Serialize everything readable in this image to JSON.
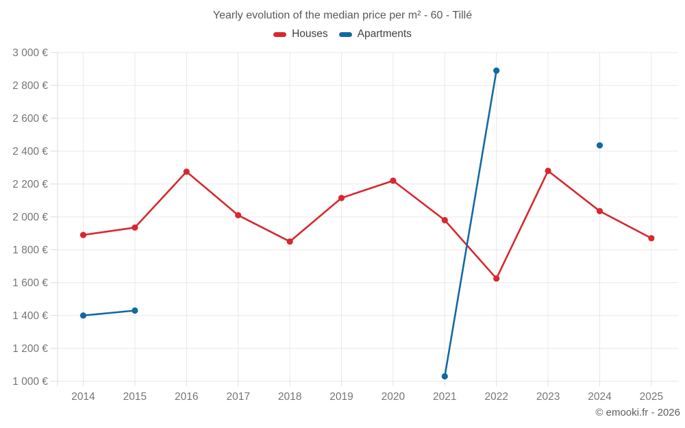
{
  "chart_data": {
    "type": "line",
    "title": "Yearly evolution of the median price per m² - 60 - Tillé",
    "categories": [
      "2014",
      "2015",
      "2016",
      "2017",
      "2018",
      "2019",
      "2020",
      "2021",
      "2022",
      "2023",
      "2024",
      "2025"
    ],
    "series": [
      {
        "name": "Houses",
        "color": "#d7282e",
        "values": [
          1890,
          1935,
          2275,
          2010,
          1850,
          2115,
          2220,
          1980,
          1625,
          2280,
          2035,
          1870
        ]
      },
      {
        "name": "Apartments",
        "color": "#1269a2",
        "values": [
          1400,
          1430,
          null,
          null,
          null,
          null,
          null,
          1030,
          2890,
          null,
          2435,
          null
        ]
      }
    ],
    "ylim": [
      1000,
      3000
    ],
    "ytick_step": 200,
    "ytick_labels": [
      "1 000 €",
      "1 200 €",
      "1 400 €",
      "1 600 €",
      "1 800 €",
      "2 000 €",
      "2 200 €",
      "2 400 €",
      "2 600 €",
      "2 800 €",
      "3 000 €"
    ],
    "grid": true,
    "legend_position": "top",
    "xlabel": "",
    "ylabel": ""
  },
  "watermark": "© emooki.fr - 2026"
}
